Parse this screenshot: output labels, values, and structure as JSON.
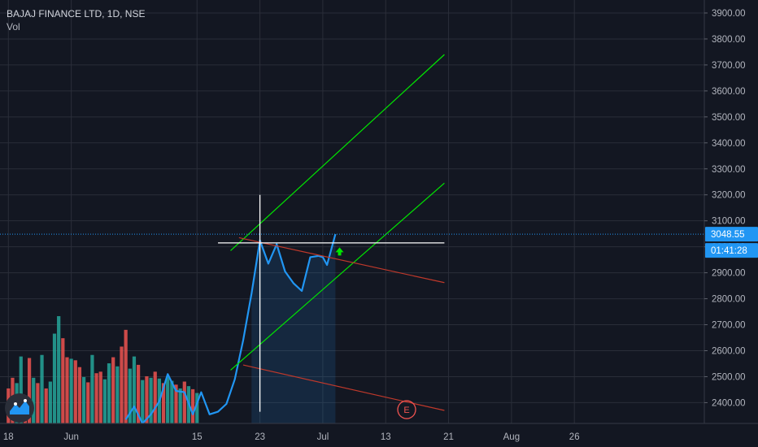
{
  "legend": {
    "symbol": "BAJAJ FINANCE LTD, 1D, NSE",
    "volume_label": "Vol"
  },
  "chart_data": {
    "type": "line",
    "price_axis": {
      "ticks": [
        2400,
        2500,
        2600,
        2700,
        2800,
        2900,
        3000,
        3100,
        3200,
        3300,
        3400,
        3500,
        3600,
        3700,
        3800,
        3900
      ],
      "tick_labels": [
        "2400.00",
        "2500.00",
        "2600.00",
        "2700.00",
        "2800.00",
        "2900.00",
        "3000.00",
        "3100.00",
        "3200.00",
        "3300.00",
        "3400.00",
        "3500.00",
        "3600.00",
        "3700.00",
        "3800.00",
        "3900.00"
      ],
      "visible_range": [
        2320,
        3950
      ]
    },
    "time_axis": {
      "labels": [
        "18",
        "Jun",
        "15",
        "23",
        "Jul",
        "13",
        "21",
        "Aug",
        "26"
      ],
      "label_index": [
        0,
        15,
        45,
        60,
        75,
        90,
        105,
        120,
        135
      ],
      "visible_range": [
        -2,
        166
      ]
    },
    "last_price": {
      "value": 3048.55,
      "label": "3048.55",
      "countdown": "01:41:28"
    },
    "price_series": {
      "x": [
        -1,
        0,
        1,
        2,
        3,
        4,
        5,
        6,
        7,
        8,
        9,
        10,
        11,
        12,
        13,
        14,
        15,
        16,
        17,
        18,
        19,
        20,
        21,
        22,
        23,
        24,
        25,
        26,
        27,
        28,
        29,
        30,
        31,
        32,
        33,
        34,
        35,
        36,
        37,
        38,
        39,
        40,
        41,
        42,
        43,
        44,
        45,
        46,
        47,
        48,
        49,
        50,
        51,
        52,
        53,
        54,
        55,
        56,
        57,
        58,
        59,
        60,
        61,
        62,
        63,
        64,
        65,
        66,
        67,
        68,
        69,
        70,
        71,
        72,
        73,
        74,
        75,
        76,
        77,
        78,
        79,
        80,
        81,
        82,
        83,
        84,
        85,
        86,
        87,
        88,
        89,
        90,
        91,
        92,
        93,
        94,
        95,
        96,
        97,
        98,
        99,
        100,
        101,
        102,
        103,
        104,
        105,
        106,
        107,
        108,
        109,
        110,
        111,
        112,
        113,
        114,
        115,
        116,
        117,
        118,
        119,
        120,
        121,
        122,
        123,
        124,
        125,
        126,
        127,
        128,
        129,
        130,
        131,
        132,
        133,
        134,
        135,
        136,
        137,
        138,
        139,
        140,
        141,
        142,
        143,
        144,
        145,
        146,
        147,
        148,
        149,
        150,
        151,
        152,
        153,
        154,
        155,
        156,
        157,
        158,
        159,
        160,
        161,
        162,
        163,
        164,
        165
      ],
      "values": [
        null,
        null,
        null,
        null,
        null,
        null,
        null,
        null,
        null,
        null,
        null,
        null,
        null,
        null,
        null,
        null,
        null,
        null,
        null,
        null,
        null,
        null,
        null,
        null,
        null,
        null,
        null,
        null,
        null,
        null,
        null,
        null,
        null,
        null,
        null,
        null,
        null,
        null,
        null,
        null,
        null,
        null,
        null,
        null,
        null,
        null,
        null,
        null,
        null,
        null,
        null,
        null,
        null,
        null,
        null,
        null,
        null,
        null,
        null,
        null,
        null,
        null,
        null,
        null,
        null,
        null,
        null,
        null,
        null,
        null,
        null,
        null,
        null,
        null,
        null,
        null,
        null,
        null,
        null,
        null,
        null,
        null,
        null,
        null,
        null,
        null,
        null,
        null,
        null,
        null,
        null,
        null,
        null,
        null,
        null,
        null,
        null,
        null,
        null,
        null,
        null,
        null,
        null,
        null,
        null,
        null,
        null,
        null,
        null,
        null,
        null,
        null,
        null,
        null,
        null,
        null,
        null,
        null,
        null,
        null,
        null,
        null,
        null,
        null,
        null,
        null,
        null,
        null,
        null,
        null,
        null,
        null,
        null,
        null,
        null,
        null,
        null,
        null,
        null,
        null,
        null,
        null,
        null,
        null,
        null,
        null,
        null,
        null,
        null,
        null,
        null,
        null,
        null,
        null,
        null,
        null,
        null,
        null,
        null,
        null,
        null,
        null,
        null,
        null,
        null,
        null
      ]
    },
    "price_line": [
      [
        28,
        2335
      ],
      [
        30,
        2385
      ],
      [
        32,
        2320
      ],
      [
        34,
        2355
      ],
      [
        36,
        2405
      ],
      [
        38,
        2510
      ],
      [
        40,
        2445
      ],
      [
        42,
        2440
      ],
      [
        44,
        2355
      ],
      [
        46,
        2440
      ],
      [
        48,
        2355
      ],
      [
        50,
        2365
      ],
      [
        52,
        2395
      ],
      [
        54,
        2490
      ],
      [
        56,
        2640
      ],
      [
        58,
        2820
      ],
      [
        60,
        3025
      ],
      [
        62,
        2935
      ],
      [
        64,
        3010
      ],
      [
        66,
        2905
      ],
      [
        68,
        2860
      ],
      [
        70,
        2830
      ],
      [
        72,
        2960
      ],
      [
        74,
        2965
      ],
      [
        75,
        2960
      ],
      [
        76,
        2930
      ],
      [
        78,
        3048.55
      ]
    ],
    "volume_bars": {
      "x": [
        0,
        1,
        2,
        3,
        4,
        5,
        6,
        7,
        8,
        9,
        10,
        11,
        12,
        13,
        14,
        15,
        16,
        17,
        18,
        19,
        20,
        21,
        22,
        23,
        24,
        25,
        26,
        27,
        28,
        29,
        30,
        31,
        32,
        33,
        34,
        35,
        36,
        37,
        38,
        39,
        40,
        41,
        42,
        43,
        44,
        45
      ],
      "values": [
        46,
        60,
        53,
        88,
        35,
        86,
        60,
        53,
        90,
        46,
        55,
        118,
        141,
        112,
        87,
        85,
        83,
        74,
        61,
        54,
        90,
        66,
        68,
        58,
        79,
        87,
        75,
        101,
        123,
        72,
        88,
        77,
        57,
        62,
        60,
        68,
        59,
        53,
        62,
        56,
        51,
        46,
        55,
        49,
        45,
        40
      ],
      "up": [
        false,
        false,
        true,
        true,
        false,
        false,
        true,
        false,
        true,
        false,
        true,
        true,
        true,
        false,
        false,
        true,
        false,
        false,
        true,
        false,
        true,
        false,
        false,
        true,
        true,
        false,
        true,
        false,
        false,
        true,
        true,
        false,
        true,
        false,
        true,
        false,
        true,
        false,
        true,
        true,
        false,
        true,
        false,
        true,
        false,
        true
      ]
    },
    "channel_lines": [
      {
        "from": [
          53,
          2985
        ],
        "to": [
          104,
          3740
        ],
        "color": "#00e600"
      },
      {
        "from": [
          53,
          2525
        ],
        "to": [
          104,
          3245
        ],
        "color": "#00e600"
      }
    ],
    "resistance_lines": [
      {
        "from": [
          55,
          3035
        ],
        "to": [
          104,
          2862
        ],
        "color": "#c0392b"
      },
      {
        "from": [
          56,
          2545
        ],
        "to": [
          104,
          2370
        ],
        "color": "#c0392b"
      }
    ],
    "crosshair": {
      "x": 60,
      "price": 3015,
      "x_from": 50,
      "x_to": 104,
      "price_from": 2365,
      "price_to": 3200
    },
    "earnings_marker": {
      "label": "E",
      "x": 95,
      "price": 2373
    },
    "up_arrow": {
      "x": 79,
      "price": 2982
    },
    "colors": {
      "background": "#131722",
      "grid": "#2a2e39",
      "price_line": "#2196f3",
      "volume_up": "#26a69a",
      "volume_down": "#ef5350",
      "last_price": "#2196f3",
      "axis_text": "#b2b5be",
      "crosshair": "#ffffff",
      "earnings": "#ef5350",
      "arrow": "#00e600"
    }
  }
}
